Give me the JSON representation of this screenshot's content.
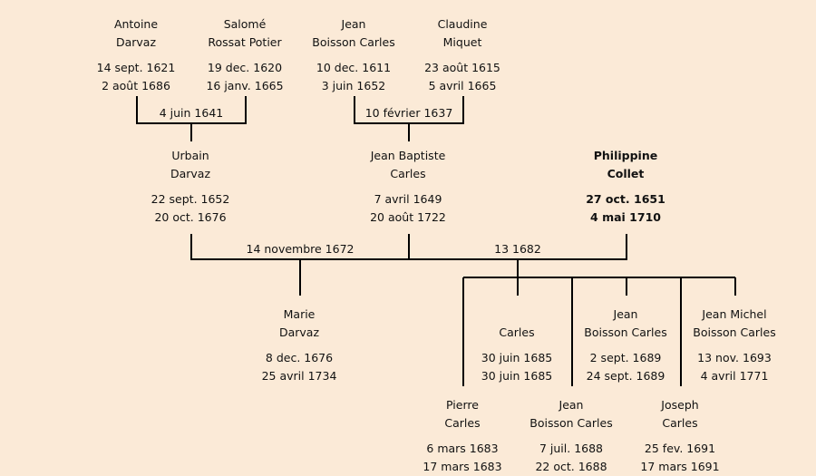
{
  "persons": [
    {
      "first": "Antoine",
      "last": "Darvaz",
      "birth": "14 sept. 1621",
      "death": "2 août 1686"
    },
    {
      "first": "Salomé",
      "last": "Rossat Potier",
      "birth": "19 dec. 1620",
      "death": "16 janv. 1665"
    },
    {
      "first": "Jean",
      "last": "Boisson Carles",
      "birth": "10 dec. 1611",
      "death": "3 juin 1652"
    },
    {
      "first": "Claudine",
      "last": "Miquet",
      "birth": "23 août 1615",
      "death": "5 avril 1665"
    },
    {
      "first": "Urbain",
      "last": "Darvaz",
      "birth": "22 sept. 1652",
      "death": "20 oct. 1676"
    },
    {
      "first": "Jean Baptiste",
      "last": "Carles",
      "birth": "7 avril 1649",
      "death": "20 août 1722"
    },
    {
      "first": "Philippine",
      "last": "Collet",
      "birth": "27 oct. 1651",
      "death": "4 mai 1710",
      "highlight": true
    },
    {
      "first": "Marie",
      "last": "Darvaz",
      "birth": "8 dec. 1676",
      "death": "25 avril 1734"
    },
    {
      "first": "",
      "last": "Carles",
      "birth": "30 juin 1685",
      "death": "30 juin 1685"
    },
    {
      "first": "Jean",
      "last": "Boisson Carles",
      "birth": "2 sept. 1689",
      "death": "24 sept. 1689"
    },
    {
      "first": "Jean Michel",
      "last": "Boisson Carles",
      "birth": "13 nov. 1693",
      "death": "4 avril 1771"
    },
    {
      "first": "Pierre",
      "last": "Carles",
      "birth": "6 mars 1683",
      "death": "17 mars 1683"
    },
    {
      "first": "Jean",
      "last": "Boisson Carles",
      "birth": "7 juil. 1688",
      "death": "22 oct. 1688"
    },
    {
      "first": "Joseph",
      "last": "Carles",
      "birth": "25 fev. 1691",
      "death": "17 mars 1691"
    }
  ],
  "marriages": [
    "4 juin 1641",
    "10 février 1637",
    "14 novembre 1672",
    "13 1682"
  ]
}
